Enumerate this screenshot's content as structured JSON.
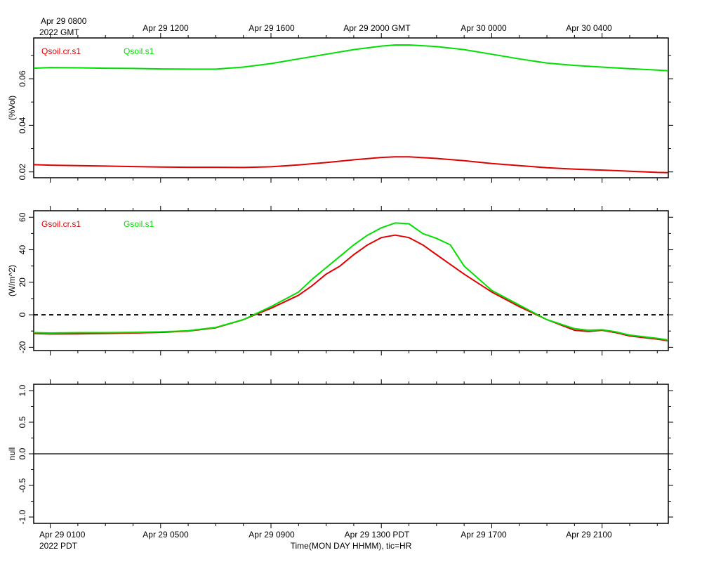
{
  "top_axis": {
    "first_label": "Apr 29 0800",
    "first_label_line2": "2022 GMT",
    "labels": [
      "Apr 29 1200",
      "Apr 29 1600",
      "Apr 29 2000 GMT",
      "Apr 30 0000",
      "Apr 30 0400"
    ]
  },
  "bottom_axis": {
    "first_label": "Apr 29 0100",
    "first_label_line2": "2022 PDT",
    "labels": [
      "Apr 29 0500",
      "Apr 29 0900",
      "Apr 29 1300 PDT",
      "Apr 29 1700",
      "Apr 29 2100"
    ],
    "title": "Time(MON DAY HHMM), tic=HR"
  },
  "colors": {
    "red": "#e00000",
    "green": "#00e000"
  },
  "chart_data": [
    {
      "type": "line",
      "ylabel": "(%Vol)",
      "x_unit": "hours since Apr 29 0000 PDT",
      "xlim": [
        0.4,
        23.4
      ],
      "ylim": [
        0.0175,
        0.0775
      ],
      "yticks": [
        0.02,
        0.04,
        0.06
      ],
      "ytick_labels": [
        "0.02",
        "0.04",
        "0.06"
      ],
      "legend_placement": "top-left",
      "series": [
        {
          "name": "Qsoil.cr.s1",
          "color": "#e00000",
          "x": [
            0.4,
            1,
            2,
            3,
            4,
            5,
            6,
            7,
            8,
            9,
            10,
            11,
            12,
            13,
            13.5,
            14,
            15,
            16,
            17,
            18,
            19,
            20,
            21,
            22,
            23,
            23.4
          ],
          "y": [
            0.0231,
            0.0229,
            0.0227,
            0.0225,
            0.0223,
            0.0221,
            0.022,
            0.022,
            0.0219,
            0.0222,
            0.023,
            0.024,
            0.0252,
            0.0262,
            0.0265,
            0.0265,
            0.0258,
            0.0248,
            0.0236,
            0.0227,
            0.0218,
            0.0212,
            0.0208,
            0.0203,
            0.0198,
            0.0197
          ]
        },
        {
          "name": "Qsoil.s1",
          "color": "#00e000",
          "x": [
            0.4,
            1,
            2,
            3,
            4,
            5,
            6,
            7,
            8,
            9,
            10,
            11,
            12,
            13,
            13.5,
            14,
            15,
            16,
            17,
            18,
            19,
            20,
            21,
            22,
            23,
            23.4
          ],
          "y": [
            0.0645,
            0.0648,
            0.0647,
            0.0645,
            0.0644,
            0.0642,
            0.0641,
            0.0641,
            0.065,
            0.0665,
            0.0685,
            0.0705,
            0.0725,
            0.074,
            0.0745,
            0.0745,
            0.0738,
            0.0725,
            0.0705,
            0.0685,
            0.0667,
            0.0657,
            0.065,
            0.0643,
            0.0637,
            0.0634
          ]
        }
      ]
    },
    {
      "type": "line",
      "ylabel": "(W/m^2)",
      "x_unit": "hours since Apr 29 0000 PDT",
      "xlim": [
        0.4,
        23.4
      ],
      "ylim": [
        -22,
        64
      ],
      "yticks": [
        -20,
        0,
        20,
        40,
        60
      ],
      "ytick_labels": [
        "-20",
        "0",
        "20",
        "40",
        "60"
      ],
      "reference_line": {
        "y": 0,
        "style": "dashed"
      },
      "legend_placement": "top-left",
      "series": [
        {
          "name": "Gsoil.cr.s1",
          "color": "#e00000",
          "x": [
            0.4,
            1,
            2,
            3,
            4,
            5,
            6,
            7,
            8,
            9,
            10,
            10.5,
            11,
            11.5,
            12,
            12.5,
            13,
            13.5,
            14,
            14.5,
            15,
            16,
            17,
            18,
            19,
            20,
            20.5,
            21,
            21.5,
            22,
            23,
            23.4
          ],
          "y": [
            -11.5,
            -11.8,
            -11.7,
            -11.5,
            -11.2,
            -10.8,
            -10.0,
            -8.0,
            -3.0,
            4.0,
            12.0,
            18.0,
            25.0,
            30.0,
            37.0,
            43.0,
            47.5,
            49.0,
            47.5,
            43.0,
            37.0,
            25.0,
            14.0,
            5.0,
            -3.0,
            -9.5,
            -10.2,
            -9.5,
            -11.0,
            -13.0,
            -15.0,
            -16.0
          ]
        },
        {
          "name": "Gsoil.s1",
          "color": "#00e000",
          "x": [
            0.4,
            1,
            2,
            3,
            4,
            5,
            6,
            7,
            8,
            9,
            10,
            10.5,
            11,
            11.5,
            12,
            12.5,
            13,
            13.5,
            14,
            14.5,
            15,
            15.5,
            16,
            17,
            18,
            19,
            20,
            20.5,
            21,
            21.5,
            22,
            23,
            23.4
          ],
          "y": [
            -11.0,
            -11.2,
            -11.0,
            -11.0,
            -10.8,
            -10.5,
            -9.8,
            -7.8,
            -3.0,
            5.0,
            14.0,
            22.0,
            29.0,
            36.0,
            43.0,
            49.0,
            53.5,
            56.5,
            56.0,
            50.0,
            47.0,
            43.0,
            30.0,
            15.0,
            6.0,
            -3.0,
            -8.5,
            -9.5,
            -9.2,
            -10.5,
            -12.5,
            -14.5,
            -15.5
          ]
        }
      ]
    },
    {
      "type": "line",
      "ylabel": "null",
      "x_unit": "hours since Apr 29 0000 PDT",
      "xlim": [
        0.4,
        23.4
      ],
      "ylim": [
        -1.1,
        1.1
      ],
      "yticks": [
        -1.0,
        -0.5,
        0.0,
        0.5,
        1.0
      ],
      "ytick_labels": [
        "-1.0",
        "-0.5",
        "0.0",
        "0.5",
        "1.0"
      ],
      "reference_line": {
        "y": 0,
        "style": "solid"
      },
      "series": []
    }
  ]
}
